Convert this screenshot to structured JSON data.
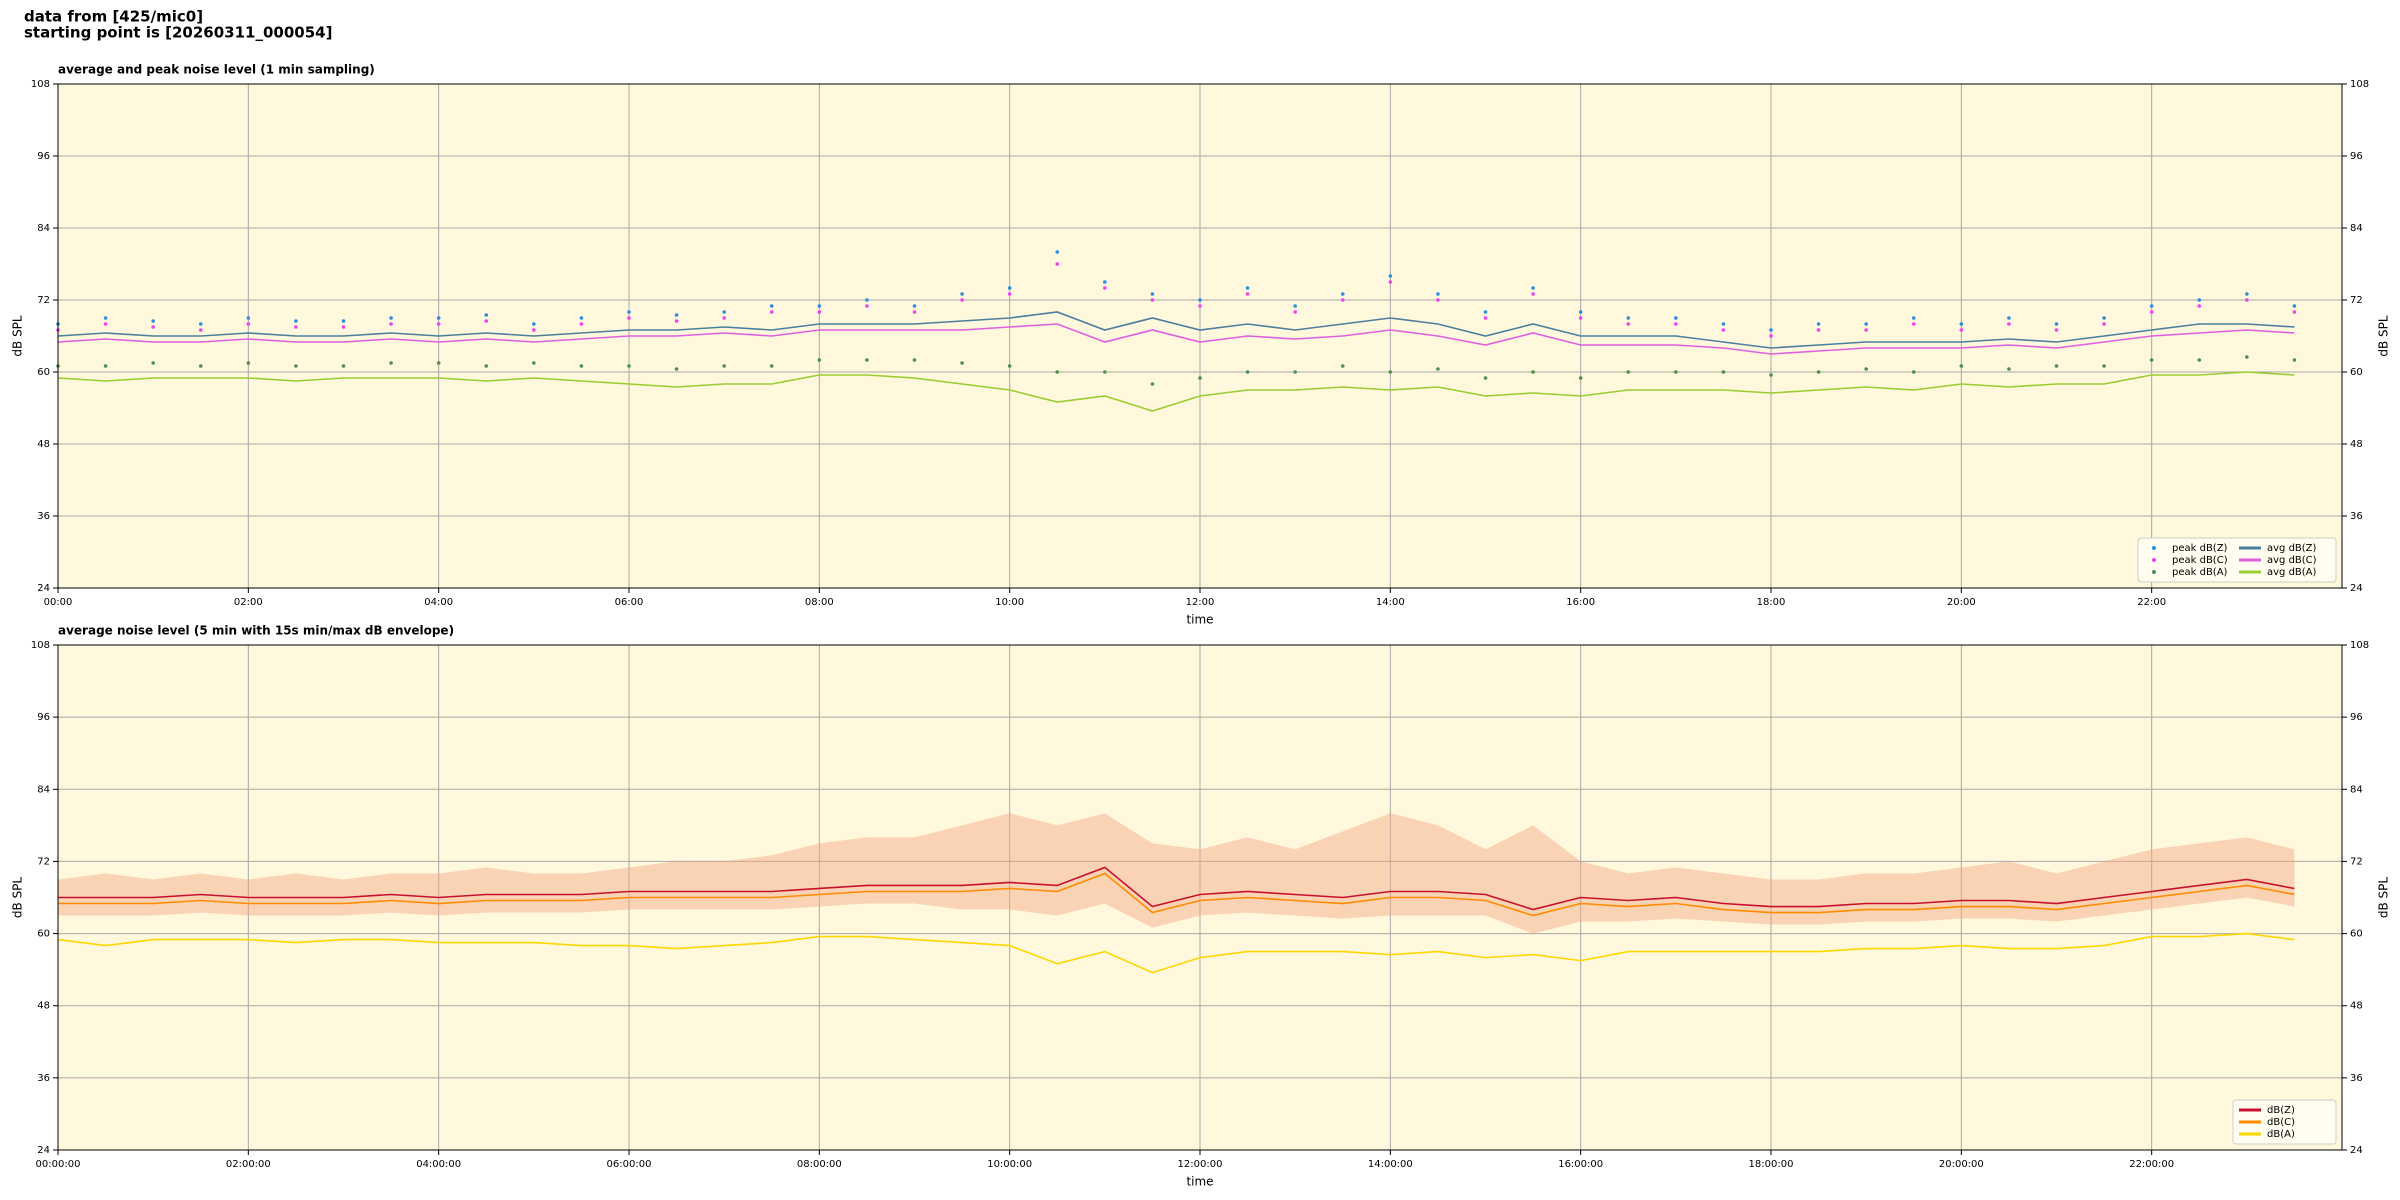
{
  "header": [
    "data from [425/mic0]",
    "starting point is [20260311_000054]"
  ],
  "chart_data": [
    {
      "type": "line",
      "title": "average and peak noise level (1 min sampling)",
      "xlabel": "time",
      "ylabel": "dB SPL",
      "xlim": [
        0,
        24
      ],
      "ylim": [
        24,
        108
      ],
      "yticks": [
        24,
        36,
        48,
        60,
        72,
        84,
        96,
        108
      ],
      "xticks": [
        {
          "value": 0,
          "label": "00:00"
        },
        {
          "value": 2,
          "label": "02:00"
        },
        {
          "value": 4,
          "label": "04:00"
        },
        {
          "value": 6,
          "label": "06:00"
        },
        {
          "value": 8,
          "label": "08:00"
        },
        {
          "value": 10,
          "label": "10:00"
        },
        {
          "value": 12,
          "label": "12:00"
        },
        {
          "value": 14,
          "label": "14:00"
        },
        {
          "value": 16,
          "label": "16:00"
        },
        {
          "value": 18,
          "label": "18:00"
        },
        {
          "value": 20,
          "label": "20:00"
        },
        {
          "value": 22,
          "label": "22:00"
        }
      ],
      "grid": true,
      "legend": "lower right",
      "background": "#fff8dc",
      "x": [
        0,
        0.5,
        1,
        1.5,
        2,
        2.5,
        3,
        3.5,
        4,
        4.5,
        5,
        5.5,
        6,
        6.5,
        7,
        7.5,
        8,
        8.5,
        9,
        9.5,
        10,
        10.5,
        11,
        11.5,
        12,
        12.5,
        13,
        13.5,
        14,
        14.5,
        15,
        15.5,
        16,
        16.5,
        17,
        17.5,
        18,
        18.5,
        19,
        19.5,
        20,
        20.5,
        21,
        21.5,
        22,
        22.5,
        23,
        23.5
      ],
      "series": [
        {
          "name": "peak dB(Z)",
          "type": "scatter",
          "color": "#2a8fe0",
          "values": [
            68,
            69,
            68.5,
            68,
            69,
            68.5,
            68.5,
            69,
            69,
            69.5,
            68,
            69,
            70,
            69.5,
            70,
            71,
            71,
            72,
            71,
            73,
            74,
            80,
            75,
            73,
            72,
            74,
            71,
            73,
            76,
            73,
            70,
            74,
            70,
            69,
            69,
            68,
            67,
            68,
            68,
            69,
            68,
            69,
            68,
            69,
            71,
            72,
            73,
            71
          ]
        },
        {
          "name": "peak dB(C)",
          "type": "scatter",
          "color": "#f040f0",
          "values": [
            67,
            68,
            67.5,
            67,
            68,
            67.5,
            67.5,
            68,
            68,
            68.5,
            67,
            68,
            69,
            68.5,
            69,
            70,
            70,
            71,
            70,
            72,
            73,
            78,
            74,
            72,
            71,
            73,
            70,
            72,
            75,
            72,
            69,
            73,
            69,
            68,
            68,
            67,
            66,
            67,
            67,
            68,
            67,
            68,
            67,
            68,
            70,
            71,
            72,
            70
          ]
        },
        {
          "name": "peak dB(A)",
          "type": "scatter",
          "color": "#4f8f4f",
          "values": [
            61,
            61,
            61.5,
            61,
            61.5,
            61,
            61,
            61.5,
            61.5,
            61,
            61.5,
            61,
            61,
            60.5,
            61,
            61,
            62,
            62,
            62,
            61.5,
            61,
            60,
            60,
            58,
            59,
            60,
            60,
            61,
            60,
            60.5,
            59,
            60,
            59,
            60,
            60,
            60,
            59.5,
            60,
            60.5,
            60,
            61,
            60.5,
            61,
            61,
            62,
            62,
            62.5,
            62
          ]
        },
        {
          "name": "avg dB(Z)",
          "type": "line",
          "color": "#4a7f9f",
          "values": [
            66,
            66.5,
            66,
            66,
            66.5,
            66,
            66,
            66.5,
            66,
            66.5,
            66,
            66.5,
            67,
            67,
            67.5,
            67,
            68,
            68,
            68,
            68.5,
            69,
            70,
            67,
            69,
            67,
            68,
            67,
            68,
            69,
            68,
            66,
            68,
            66,
            66,
            66,
            65,
            64,
            64.5,
            65,
            65,
            65,
            65.5,
            65,
            66,
            67,
            68,
            68,
            67.5
          ]
        },
        {
          "name": "avg dB(C)",
          "type": "line",
          "color": "#e060e0",
          "values": [
            65,
            65.5,
            65,
            65,
            65.5,
            65,
            65,
            65.5,
            65,
            65.5,
            65,
            65.5,
            66,
            66,
            66.5,
            66,
            67,
            67,
            67,
            67,
            67.5,
            68,
            65,
            67,
            65,
            66,
            65.5,
            66,
            67,
            66,
            64.5,
            66.5,
            64.5,
            64.5,
            64.5,
            64,
            63,
            63.5,
            64,
            64,
            64,
            64.5,
            64,
            65,
            66,
            66.5,
            67,
            66.5
          ]
        },
        {
          "name": "avg dB(A)",
          "type": "line",
          "color": "#9acd32",
          "values": [
            59,
            58.5,
            59,
            59,
            59,
            58.5,
            59,
            59,
            59,
            58.5,
            59,
            58.5,
            58,
            57.5,
            58,
            58,
            59.5,
            59.5,
            59,
            58,
            57,
            55,
            56,
            53.5,
            56,
            57,
            57,
            57.5,
            57,
            57.5,
            56,
            56.5,
            56,
            57,
            57,
            57,
            56.5,
            57,
            57.5,
            57,
            58,
            57.5,
            58,
            58,
            59.5,
            59.5,
            60,
            59.5
          ]
        }
      ]
    },
    {
      "type": "line",
      "title": "average noise level (5 min with 15s min/max dB envelope)",
      "xlabel": "time",
      "ylabel": "dB SPL",
      "xlim": [
        0,
        24
      ],
      "ylim": [
        24,
        108
      ],
      "yticks": [
        24,
        36,
        48,
        60,
        72,
        84,
        96,
        108
      ],
      "xticks": [
        {
          "value": 0,
          "label": "00:00:00"
        },
        {
          "value": 2,
          "label": "02:00:00"
        },
        {
          "value": 4,
          "label": "04:00:00"
        },
        {
          "value": 6,
          "label": "06:00:00"
        },
        {
          "value": 8,
          "label": "08:00:00"
        },
        {
          "value": 10,
          "label": "10:00:00"
        },
        {
          "value": 12,
          "label": "12:00:00"
        },
        {
          "value": 14,
          "label": "14:00:00"
        },
        {
          "value": 16,
          "label": "16:00:00"
        },
        {
          "value": 18,
          "label": "18:00:00"
        },
        {
          "value": 20,
          "label": "20:00:00"
        },
        {
          "value": 22,
          "label": "22:00:00"
        }
      ],
      "grid": true,
      "legend": "lower right",
      "background": "#fff8dc",
      "x": [
        0,
        0.5,
        1,
        1.5,
        2,
        2.5,
        3,
        3.5,
        4,
        4.5,
        5,
        5.5,
        6,
        6.5,
        7,
        7.5,
        8,
        8.5,
        9,
        9.5,
        10,
        10.5,
        11,
        11.5,
        12,
        12.5,
        13,
        13.5,
        14,
        14.5,
        15,
        15.5,
        16,
        16.5,
        17,
        17.5,
        18,
        18.5,
        19,
        19.5,
        20,
        20.5,
        21,
        21.5,
        22,
        22.5,
        23,
        23.5
      ],
      "envelope": {
        "color": "#f4a582",
        "lower": [
          63,
          63,
          63,
          63.5,
          63,
          63,
          63,
          63.5,
          63,
          63.5,
          63.5,
          63.5,
          64,
          64,
          64,
          64,
          64.5,
          65,
          65,
          64,
          64,
          63,
          65,
          61,
          63,
          63.5,
          63,
          62.5,
          63,
          63,
          63,
          60,
          62,
          62,
          62.5,
          62,
          61.5,
          61.5,
          62,
          62,
          62.5,
          62.5,
          62,
          63,
          64,
          65,
          66,
          64.5
        ],
        "upper": [
          69,
          70,
          69,
          70,
          69,
          70,
          69,
          70,
          70,
          71,
          70,
          70,
          71,
          72,
          72,
          73,
          75,
          76,
          76,
          78,
          80,
          78,
          80,
          75,
          74,
          76,
          74,
          77,
          80,
          78,
          74,
          78,
          72,
          70,
          71,
          70,
          69,
          69,
          70,
          70,
          71,
          72,
          70,
          72,
          74,
          75,
          76,
          74
        ]
      },
      "series": [
        {
          "name": "dB(Z)",
          "type": "line",
          "color": "#c8102e",
          "values": [
            66,
            66,
            66,
            66.5,
            66,
            66,
            66,
            66.5,
            66,
            66.5,
            66.5,
            66.5,
            67,
            67,
            67,
            67,
            67.5,
            68,
            68,
            68,
            68.5,
            68,
            71,
            64.5,
            66.5,
            67,
            66.5,
            66,
            67,
            67,
            66.5,
            64,
            66,
            65.5,
            66,
            65,
            64.5,
            64.5,
            65,
            65,
            65.5,
            65.5,
            65,
            66,
            67,
            68,
            69,
            67.5
          ]
        },
        {
          "name": "dB(C)",
          "type": "line",
          "color": "#ff8c00",
          "values": [
            65,
            65,
            65,
            65.5,
            65,
            65,
            65,
            65.5,
            65,
            65.5,
            65.5,
            65.5,
            66,
            66,
            66,
            66,
            66.5,
            67,
            67,
            67,
            67.5,
            67,
            70,
            63.5,
            65.5,
            66,
            65.5,
            65,
            66,
            66,
            65.5,
            63,
            65,
            64.5,
            65,
            64,
            63.5,
            63.5,
            64,
            64,
            64.5,
            64.5,
            64,
            65,
            66,
            67,
            68,
            66.5
          ]
        },
        {
          "name": "dB(A)",
          "type": "line",
          "color": "#ffd700",
          "values": [
            59,
            58,
            59,
            59,
            59,
            58.5,
            59,
            59,
            58.5,
            58.5,
            58.5,
            58,
            58,
            57.5,
            58,
            58.5,
            59.5,
            59.5,
            59,
            58.5,
            58,
            55,
            57,
            53.5,
            56,
            57,
            57,
            57,
            56.5,
            57,
            56,
            56.5,
            55.5,
            57,
            57,
            57,
            57,
            57,
            57.5,
            57.5,
            58,
            57.5,
            57.5,
            58,
            59.5,
            59.5,
            60,
            59
          ]
        }
      ]
    }
  ]
}
